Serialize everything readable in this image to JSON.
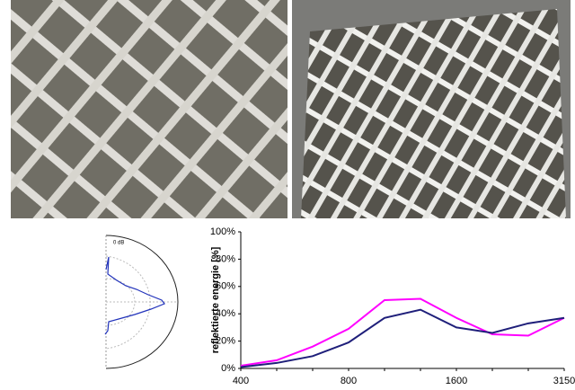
{
  "chart_data": {
    "type": "line",
    "ylabel": "reflektierte energie [%]",
    "categories": [
      "400",
      null,
      null,
      "800",
      null,
      null,
      "1600",
      null,
      null,
      "3150"
    ],
    "series": [
      {
        "color": "#ff00ff",
        "values": [
          2,
          6,
          16,
          29,
          50,
          51,
          37,
          25,
          24,
          37
        ]
      },
      {
        "color": "#1f1f7a",
        "values": [
          1,
          4,
          9,
          19,
          37,
          43,
          30,
          26,
          33,
          37
        ]
      }
    ],
    "ylim": [
      0,
      100
    ],
    "yticks": [
      {
        "value": 0,
        "label": "0%"
      },
      {
        "value": 20,
        "label": "20%"
      },
      {
        "value": 40,
        "label": "40%"
      },
      {
        "value": 60,
        "label": "60%"
      },
      {
        "value": 80,
        "label": "80%"
      },
      {
        "value": 100,
        "label": "100%"
      }
    ]
  },
  "polar": {
    "label": "0 dB"
  }
}
